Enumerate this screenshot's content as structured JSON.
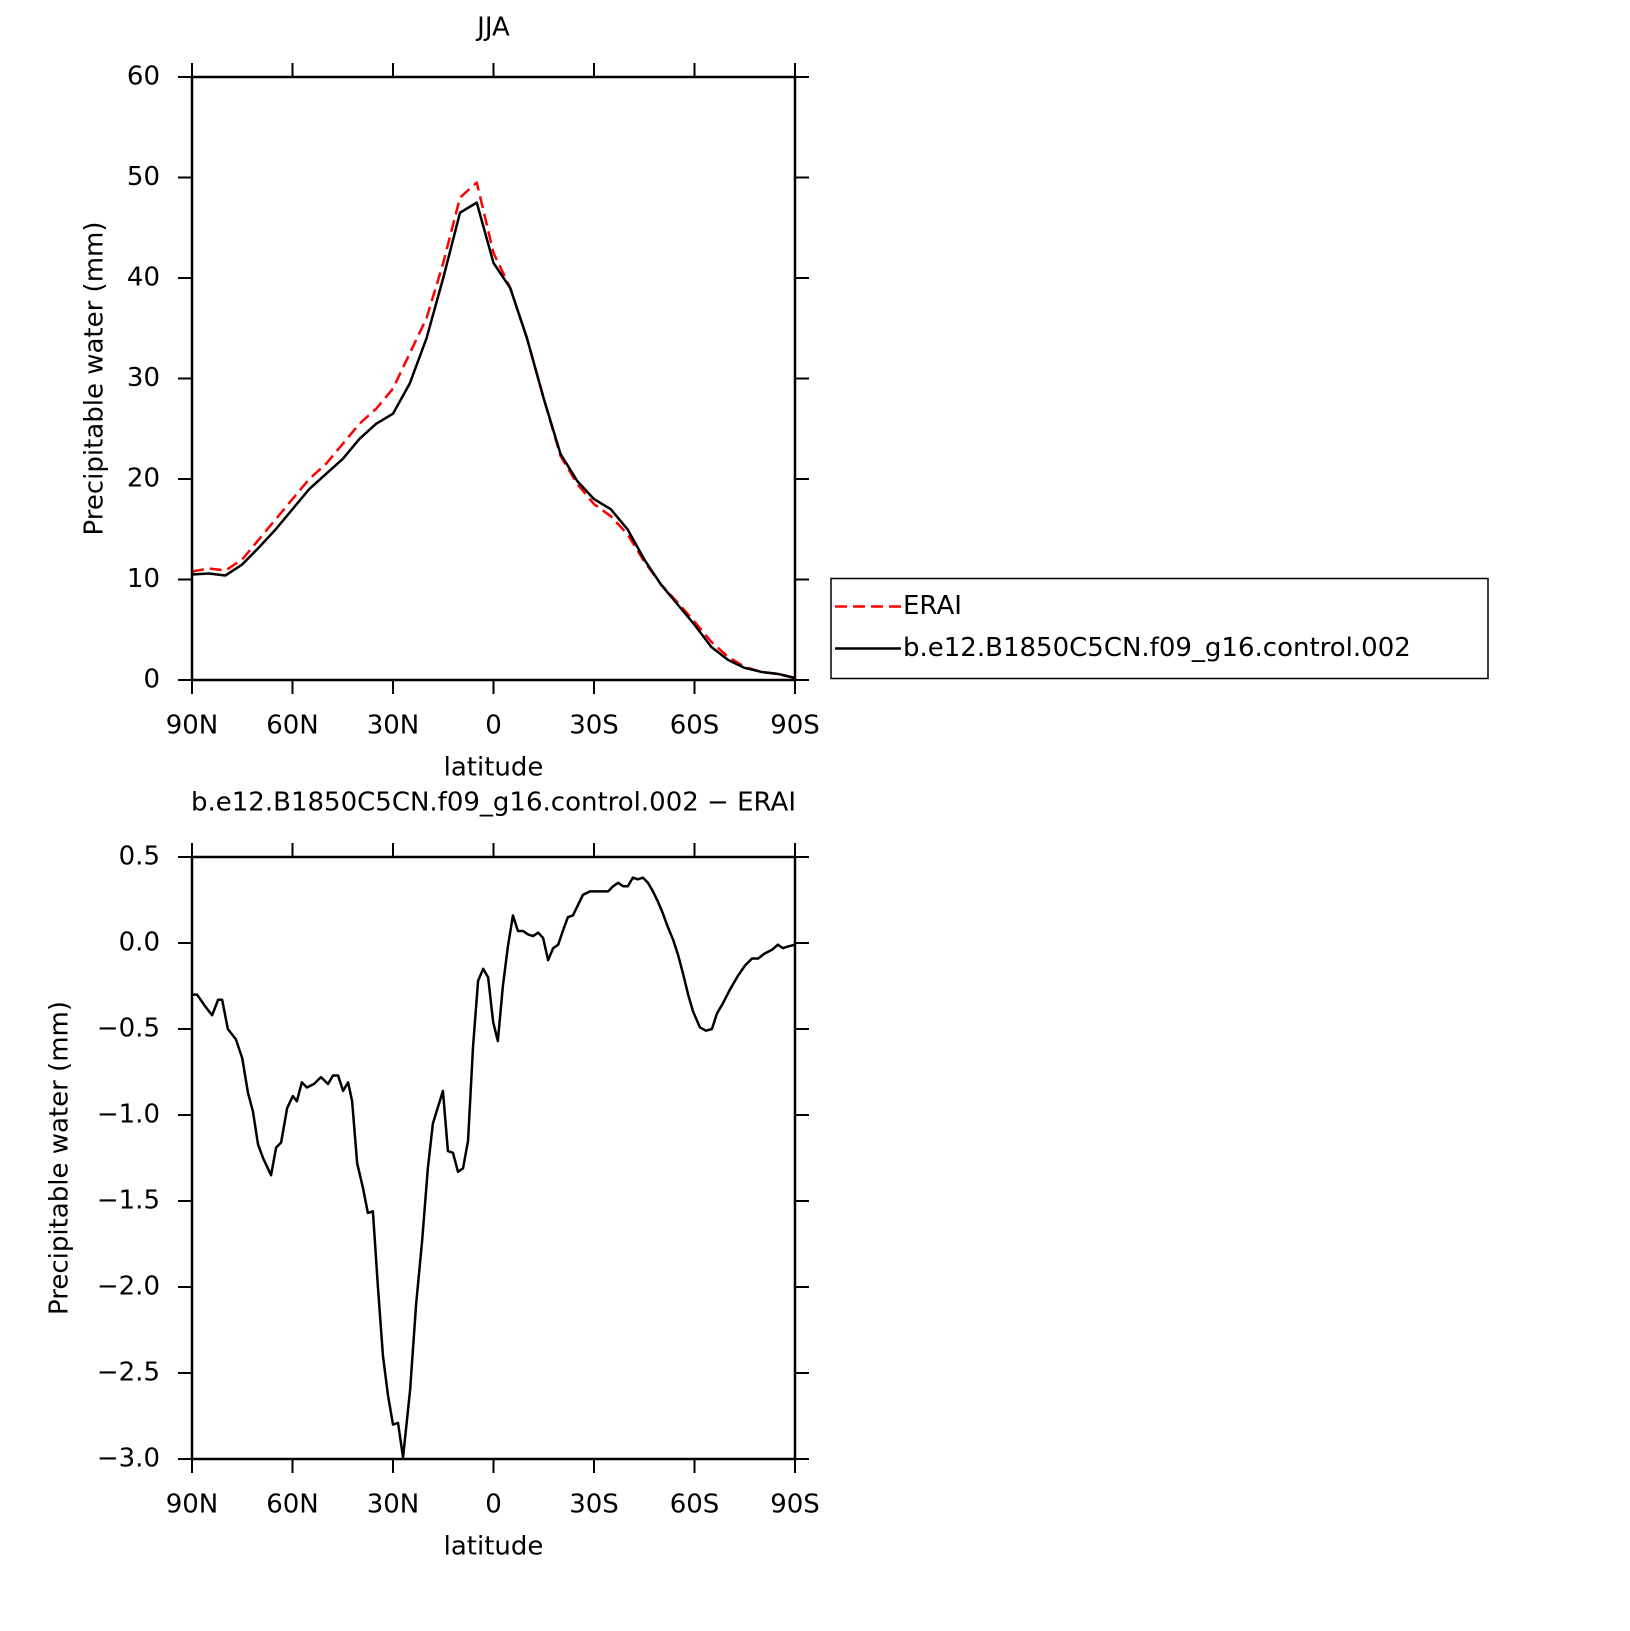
{
  "chart_data": [
    {
      "type": "line",
      "title": "JJA",
      "xlabel": "latitude",
      "ylabel": "Precipitable water (mm)",
      "x": [
        90,
        85,
        80,
        75,
        70,
        65,
        60,
        55,
        50,
        45,
        40,
        35,
        30,
        25,
        20,
        15,
        10,
        5,
        0,
        -5,
        -10,
        -15,
        -20,
        -25,
        -30,
        -35,
        -40,
        -45,
        -50,
        -55,
        -60,
        -65,
        -70,
        -75,
        -80,
        -85,
        -90
      ],
      "series": [
        {
          "name": "ERAI",
          "color": "#ff0000",
          "dashed": true,
          "values": [
            10.8,
            11.1,
            10.9,
            12,
            14,
            16,
            18,
            20,
            21.5,
            23.5,
            25.5,
            27,
            29,
            32.5,
            36,
            41.5,
            48,
            49.5,
            42.5,
            39,
            34,
            28,
            22.3,
            19.5,
            17.5,
            16.3,
            14.5,
            11.8,
            9.5,
            7.7,
            5.8,
            3.8,
            2.3,
            1.3,
            0.8,
            0.6,
            0.2
          ]
        },
        {
          "name": "b.e12.B1850C5CN.f09_g16.control.002",
          "color": "#000000",
          "dashed": false,
          "values": [
            10.5,
            10.6,
            10.4,
            11.5,
            13.2,
            15,
            17,
            19,
            20.5,
            22,
            24,
            25.5,
            26.5,
            29.5,
            34,
            40,
            46.5,
            47.5,
            41.5,
            39,
            34,
            28,
            22.5,
            19.8,
            18,
            17,
            15,
            12,
            9.5,
            7.5,
            5.5,
            3.3,
            2,
            1.2,
            0.8,
            0.6,
            0.2
          ]
        }
      ],
      "xlim": [
        90,
        -90
      ],
      "xticks": [
        {
          "value": 90,
          "label": "90N"
        },
        {
          "value": 60,
          "label": "60N"
        },
        {
          "value": 30,
          "label": "30N"
        },
        0,
        {
          "value": -30,
          "label": "30S"
        },
        {
          "value": -60,
          "label": "60S"
        },
        {
          "value": -90,
          "label": "90S"
        }
      ],
      "ylim": [
        0,
        60
      ],
      "yticks": [
        0,
        10,
        20,
        30,
        40,
        50,
        60
      ],
      "legend": "right"
    },
    {
      "type": "line",
      "title": "b.e12.B1850C5CN.f09_g16.control.002 − ERAI",
      "xlabel": "latitude",
      "ylabel": "Precipitable water (mm)",
      "x": [
        90,
        88.5,
        86,
        84,
        82.2,
        81,
        79.3,
        76.9,
        75,
        73.3,
        71.8,
        70.3,
        68.8,
        66.4,
        64.9,
        63.4,
        61.6,
        59.9,
        58.7,
        57.2,
        55.7,
        53.6,
        51.5,
        49.4,
        47.9,
        46.4,
        44.9,
        43.4,
        42.2,
        40.7,
        38.9,
        37.5,
        36,
        34.5,
        33,
        31.5,
        30,
        28.5,
        27,
        24.9,
        23.1,
        21.3,
        19.6,
        18.1,
        15.1,
        13.6,
        12.1,
        10.6,
        9.1,
        7.6,
        6.1,
        4.6,
        3.1,
        1.6,
        0.1,
        -1.3,
        -2.8,
        -4.3,
        -5.8,
        -7.3,
        -8.8,
        -10.3,
        -11.8,
        -13.3,
        -14.8,
        -16.3,
        -17.8,
        -19.3,
        -20.7,
        -22.2,
        -23.7,
        -25.2,
        -26.7,
        -28.8,
        -31.8,
        -34.2,
        -35.7,
        -37.2,
        -38.7,
        -40.1,
        -41.6,
        -43.1,
        -44.6,
        -46.1,
        -47.6,
        -49.1,
        -50.6,
        -52.1,
        -53.6,
        -55.1,
        -56.6,
        -58.1,
        -59.6,
        -61.6,
        -63.4,
        -65.2,
        -66.7,
        -68.5,
        -70.6,
        -73,
        -75.1,
        -77.2,
        -79,
        -81,
        -83.1,
        -84.9,
        -86.4,
        -87.9,
        -90
      ],
      "series": [
        {
          "name": null,
          "color": "#000000",
          "dashed": false,
          "values": [
            -0.3,
            -0.3,
            -0.37,
            -0.42,
            -0.33,
            -0.33,
            -0.5,
            -0.56,
            -0.67,
            -0.87,
            -0.98,
            -1.17,
            -1.25,
            -1.35,
            -1.19,
            -1.16,
            -0.96,
            -0.89,
            -0.92,
            -0.81,
            -0.84,
            -0.82,
            -0.78,
            -0.82,
            -0.77,
            -0.77,
            -0.86,
            -0.81,
            -0.92,
            -1.28,
            -1.43,
            -1.57,
            -1.56,
            -2,
            -2.4,
            -2.63,
            -2.8,
            -2.79,
            -2.99,
            -2.6,
            -2.1,
            -1.73,
            -1.31,
            -1.05,
            -0.86,
            -1.21,
            -1.22,
            -1.33,
            -1.31,
            -1.15,
            -0.6,
            -0.22,
            -0.15,
            -0.2,
            -0.46,
            -0.57,
            -0.25,
            -0.02,
            0.16,
            0.07,
            0.07,
            0.05,
            0.04,
            0.06,
            0.03,
            -0.1,
            -0.03,
            -0.01,
            0.07,
            0.15,
            0.16,
            0.22,
            0.28,
            0.3,
            0.3,
            0.3,
            0.33,
            0.35,
            0.33,
            0.33,
            0.38,
            0.37,
            0.38,
            0.35,
            0.3,
            0.24,
            0.17,
            0.09,
            0.02,
            -0.07,
            -0.18,
            -0.3,
            -0.4,
            -0.49,
            -0.51,
            -0.5,
            -0.41,
            -0.35,
            -0.27,
            -0.19,
            -0.13,
            -0.09,
            -0.09,
            -0.06,
            -0.04,
            -0.01,
            -0.03,
            -0.02,
            -0.01
          ]
        }
      ],
      "xlim": [
        90,
        -90
      ],
      "xticks": [
        {
          "value": 90,
          "label": "90N"
        },
        {
          "value": 60,
          "label": "60N"
        },
        {
          "value": 30,
          "label": "30N"
        },
        0,
        {
          "value": -30,
          "label": "30S"
        },
        {
          "value": -60,
          "label": "60S"
        },
        {
          "value": -90,
          "label": "90S"
        }
      ],
      "ylim": [
        -3,
        0.5
      ],
      "yticks": [
        {
          "value": -3,
          "label": "−3.0"
        },
        {
          "value": -2.5,
          "label": "−2.5"
        },
        {
          "value": -2,
          "label": "−2.0"
        },
        {
          "value": -1.5,
          "label": "−1.5"
        },
        {
          "value": -1,
          "label": "−1.0"
        },
        {
          "value": -0.5,
          "label": "−0.5"
        },
        {
          "value": 0,
          "label": "0.0"
        },
        0.5
      ]
    }
  ]
}
